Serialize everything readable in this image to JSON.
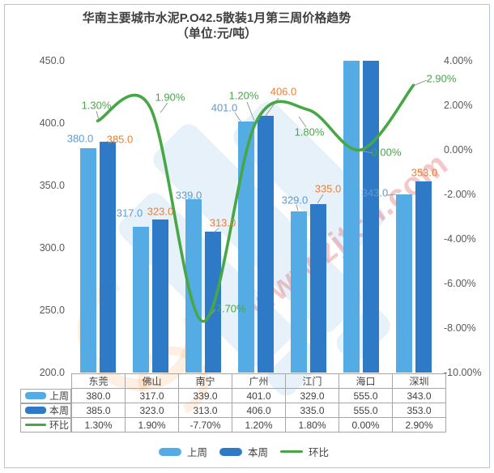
{
  "title": {
    "line1": "华南主要城市水泥P.O42.5散装1月第三周价格趋势",
    "line2": "（单位:元/吨）"
  },
  "watermark": {
    "text": "www.zjtcn.com"
  },
  "legend": {
    "items": [
      {
        "key": "last-week",
        "label": "上周",
        "type": "bar",
        "color": "#55ACE4"
      },
      {
        "key": "this-week",
        "label": "本周",
        "type": "bar",
        "color": "#2E7AC6"
      },
      {
        "key": "wow",
        "label": "环比",
        "type": "line",
        "color": "#47A747"
      }
    ]
  },
  "chart_data": {
    "type": "bar+line",
    "title": "华南主要城市水泥P.O42.5散装1月第三周价格趋势（单位:元/吨）",
    "categories": [
      "东莞",
      "佛山",
      "南宁",
      "广州",
      "江门",
      "海口",
      "深圳"
    ],
    "series": [
      {
        "key": "last-week",
        "name": "上周",
        "kind": "bar",
        "color": "#55ACE4",
        "label_color": "#5B9BD5",
        "values": [
          380.0,
          317.0,
          339.0,
          401.0,
          329.0,
          555.0,
          343.0
        ],
        "point_labels": [
          "380.0",
          "317.0",
          "339.0",
          "401.0",
          "329.0",
          null,
          "343.0"
        ],
        "table_values": [
          "380.0",
          "317.0",
          "339.0",
          "401.0",
          "329.0",
          "555.0",
          "343.0"
        ]
      },
      {
        "key": "this-week",
        "name": "本周",
        "kind": "bar",
        "color": "#2E7AC6",
        "label_color": "#ED7D31",
        "values": [
          385.0,
          323.0,
          313.0,
          406.0,
          335.0,
          555.0,
          353.0
        ],
        "point_labels": [
          "385.0",
          "323.0",
          "313.0",
          "406.0",
          "335.0",
          null,
          "353.0"
        ],
        "table_values": [
          "385.0",
          "323.0",
          "313.0",
          "406.0",
          "335.0",
          "555.0",
          "353.0"
        ]
      },
      {
        "key": "wow",
        "name": "环比",
        "kind": "line",
        "color": "#47A747",
        "label_color": "#47A747",
        "values": [
          1.3,
          1.9,
          -7.7,
          1.2,
          1.8,
          0.0,
          2.9
        ],
        "point_labels": [
          "1.30%",
          "1.90%",
          "-7.70%",
          "1.20%",
          "1.80%",
          "0.00%",
          "2.90%"
        ],
        "table_values": [
          "1.30%",
          "1.90%",
          "-7.70%",
          "1.20%",
          "1.80%",
          "0.00%",
          "2.90%"
        ]
      }
    ],
    "left_axis": {
      "ticks": [
        "450.0",
        "400.0",
        "350.0",
        "300.0",
        "250.0",
        "200.0"
      ],
      "min": 200,
      "max": 450
    },
    "right_axis": {
      "ticks": [
        "4.00%",
        "2.00%",
        "0.00%",
        "-2.00%",
        "-4.00%",
        "-6.00%",
        "-8.00%",
        "-10.00%"
      ],
      "min": -10,
      "max": 4
    },
    "grid": false,
    "legend_position": "bottom"
  }
}
